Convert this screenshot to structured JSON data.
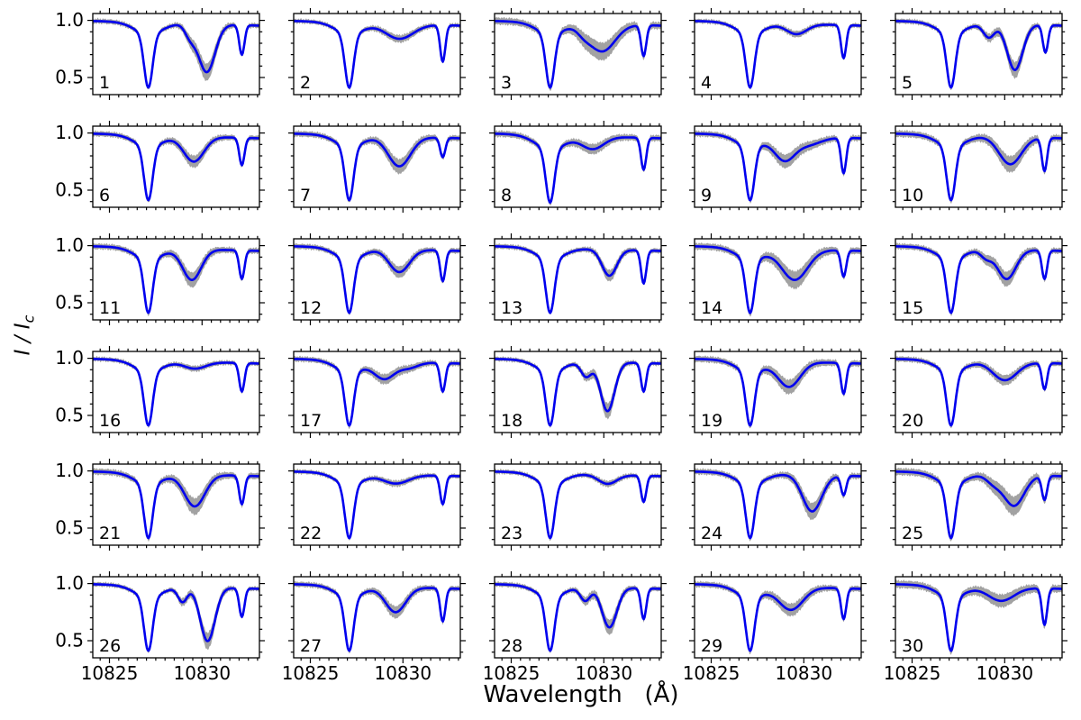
{
  "figure": {
    "background": "#ffffff",
    "text_color": "#000000"
  },
  "chart_data": {
    "type": "line",
    "title": "",
    "xlabel": "Wavelength   (Å)",
    "ylabel": "I / I_c",
    "ylabel_main": "I / I",
    "ylabel_sub": "c",
    "grid": "off",
    "legend": "none",
    "layout": {
      "rows": 6,
      "cols": 5,
      "panel_count": 30
    },
    "xlim": [
      10824.1,
      10833.1
    ],
    "ylim": [
      0.35,
      1.06
    ],
    "x_major_ticks": [
      10825,
      10830
    ],
    "x_tick_labels": [
      "10825",
      "10830"
    ],
    "x_minor_step": 0.5,
    "y_major_ticks": [
      1.0,
      0.5
    ],
    "y_tick_labels": [
      "1.0",
      "0.5"
    ],
    "y_minor_step": 0.1,
    "series": [
      {
        "name": "observed-spectrum-uncertainty-band",
        "color": "#a2a2a2"
      },
      {
        "name": "fitted-spectrum",
        "color": "#0000ee"
      }
    ],
    "continuum_default": [
      0.995,
      -0.0045
    ],
    "spectral_model_note": "lines = [center_angstrom, depth, sigma_angstrom] gaussian absorption components (Si I 10827 core+wing, He I 10830 blend, line at 10832)",
    "panels": [
      {
        "label": "1",
        "err": 1.0,
        "lines": [
          [
            10827.1,
            0.47,
            0.23
          ],
          [
            10827.1,
            0.1,
            0.75
          ],
          [
            10829.35,
            0.1,
            0.28
          ],
          [
            10830.25,
            0.42,
            0.45
          ],
          [
            10832.15,
            0.26,
            0.14
          ]
        ]
      },
      {
        "label": "2",
        "err": 0.9,
        "lines": [
          [
            10827.1,
            0.47,
            0.23
          ],
          [
            10827.1,
            0.1,
            0.75
          ],
          [
            10829.8,
            0.13,
            0.75
          ],
          [
            10832.15,
            0.32,
            0.14
          ]
        ]
      },
      {
        "label": "3",
        "err": 1.5,
        "lines": [
          [
            10827.1,
            0.47,
            0.23
          ],
          [
            10827.1,
            0.1,
            0.75
          ],
          [
            10828.9,
            0.05,
            0.35
          ],
          [
            10829.9,
            0.24,
            0.7
          ],
          [
            10832.15,
            0.27,
            0.14
          ]
        ]
      },
      {
        "label": "4",
        "err": 0.9,
        "lines": [
          [
            10827.1,
            0.47,
            0.23
          ],
          [
            10827.1,
            0.1,
            0.75
          ],
          [
            10829.6,
            0.09,
            0.55
          ],
          [
            10832.15,
            0.29,
            0.14
          ]
        ]
      },
      {
        "label": "5",
        "err": 1.0,
        "lines": [
          [
            10827.1,
            0.47,
            0.23
          ],
          [
            10827.1,
            0.1,
            0.75
          ],
          [
            10829.15,
            0.12,
            0.3
          ],
          [
            10830.55,
            0.4,
            0.42
          ],
          [
            10832.2,
            0.24,
            0.14
          ]
        ]
      },
      {
        "label": "6",
        "err": 1.1,
        "lines": [
          [
            10827.1,
            0.47,
            0.23
          ],
          [
            10827.1,
            0.1,
            0.75
          ],
          [
            10829.55,
            0.22,
            0.55
          ],
          [
            10832.15,
            0.24,
            0.14
          ]
        ]
      },
      {
        "label": "7",
        "err": 1.2,
        "lines": [
          [
            10827.1,
            0.47,
            0.23
          ],
          [
            10827.1,
            0.1,
            0.75
          ],
          [
            10829.8,
            0.26,
            0.6
          ],
          [
            10832.15,
            0.17,
            0.14
          ]
        ]
      },
      {
        "label": "8",
        "err": 1.3,
        "lines": [
          [
            10827.1,
            0.47,
            0.23
          ],
          [
            10827.1,
            0.12,
            0.8
          ],
          [
            10829.4,
            0.11,
            0.6
          ],
          [
            10832.15,
            0.28,
            0.14
          ]
        ]
      },
      {
        "label": "9",
        "err": 1.2,
        "lines": [
          [
            10827.1,
            0.47,
            0.23
          ],
          [
            10827.1,
            0.1,
            0.75
          ],
          [
            10828.95,
            0.2,
            0.55
          ],
          [
            10830.2,
            0.07,
            0.7
          ],
          [
            10832.15,
            0.31,
            0.14
          ]
        ]
      },
      {
        "label": "10",
        "err": 1.4,
        "lines": [
          [
            10827.1,
            0.47,
            0.23
          ],
          [
            10827.1,
            0.1,
            0.75
          ],
          [
            10830.3,
            0.24,
            0.6
          ],
          [
            10832.15,
            0.29,
            0.14
          ]
        ]
      },
      {
        "label": "11",
        "err": 1.2,
        "lines": [
          [
            10827.1,
            0.47,
            0.23
          ],
          [
            10827.1,
            0.1,
            0.75
          ],
          [
            10829.45,
            0.27,
            0.5
          ],
          [
            10832.15,
            0.25,
            0.14
          ]
        ]
      },
      {
        "label": "12",
        "err": 1.1,
        "lines": [
          [
            10827.1,
            0.47,
            0.23
          ],
          [
            10827.1,
            0.1,
            0.75
          ],
          [
            10829.8,
            0.2,
            0.55
          ],
          [
            10832.15,
            0.27,
            0.14
          ]
        ]
      },
      {
        "label": "13",
        "err": 1.0,
        "lines": [
          [
            10827.1,
            0.47,
            0.23
          ],
          [
            10827.1,
            0.1,
            0.75
          ],
          [
            10830.3,
            0.23,
            0.4
          ],
          [
            10832.15,
            0.29,
            0.14
          ]
        ]
      },
      {
        "label": "14",
        "err": 1.4,
        "lines": [
          [
            10827.1,
            0.47,
            0.23
          ],
          [
            10827.1,
            0.1,
            0.75
          ],
          [
            10829.5,
            0.27,
            0.7
          ],
          [
            10832.15,
            0.23,
            0.14
          ]
        ]
      },
      {
        "label": "15",
        "err": 1.2,
        "lines": [
          [
            10827.1,
            0.47,
            0.23
          ],
          [
            10827.1,
            0.1,
            0.75
          ],
          [
            10829.0,
            0.07,
            0.3
          ],
          [
            10830.1,
            0.26,
            0.5
          ],
          [
            10832.15,
            0.25,
            0.14
          ]
        ]
      },
      {
        "label": "16",
        "err": 0.9,
        "lines": [
          [
            10827.1,
            0.47,
            0.23
          ],
          [
            10827.1,
            0.1,
            0.75
          ],
          [
            10829.6,
            0.06,
            0.6
          ],
          [
            10832.15,
            0.25,
            0.14
          ]
        ]
      },
      {
        "label": "17",
        "err": 1.1,
        "lines": [
          [
            10827.1,
            0.47,
            0.23
          ],
          [
            10827.1,
            0.1,
            0.75
          ],
          [
            10829.0,
            0.15,
            0.55
          ],
          [
            10830.3,
            0.05,
            0.5
          ],
          [
            10832.15,
            0.25,
            0.14
          ]
        ]
      },
      {
        "label": "18",
        "err": 0.9,
        "lines": [
          [
            10827.1,
            0.47,
            0.23
          ],
          [
            10827.1,
            0.1,
            0.75
          ],
          [
            10829.05,
            0.13,
            0.28
          ],
          [
            10830.2,
            0.43,
            0.38
          ],
          [
            10832.15,
            0.25,
            0.14
          ]
        ]
      },
      {
        "label": "19",
        "err": 1.3,
        "lines": [
          [
            10827.1,
            0.47,
            0.23
          ],
          [
            10827.1,
            0.1,
            0.75
          ],
          [
            10829.2,
            0.22,
            0.6
          ],
          [
            10832.15,
            0.27,
            0.14
          ]
        ]
      },
      {
        "label": "20",
        "err": 1.1,
        "lines": [
          [
            10827.1,
            0.47,
            0.23
          ],
          [
            10827.1,
            0.1,
            0.75
          ],
          [
            10830.0,
            0.16,
            0.65
          ],
          [
            10832.15,
            0.23,
            0.14
          ]
        ]
      },
      {
        "label": "21",
        "err": 1.3,
        "lines": [
          [
            10827.1,
            0.47,
            0.23
          ],
          [
            10827.1,
            0.1,
            0.75
          ],
          [
            10829.6,
            0.28,
            0.55
          ],
          [
            10832.15,
            0.25,
            0.14
          ]
        ]
      },
      {
        "label": "22",
        "err": 0.9,
        "lines": [
          [
            10827.1,
            0.47,
            0.23
          ],
          [
            10827.1,
            0.1,
            0.75
          ],
          [
            10829.6,
            0.08,
            0.7
          ],
          [
            10832.15,
            0.25,
            0.14
          ]
        ]
      },
      {
        "label": "23",
        "err": 0.9,
        "lines": [
          [
            10827.1,
            0.47,
            0.23
          ],
          [
            10827.1,
            0.1,
            0.75
          ],
          [
            10830.2,
            0.08,
            0.5
          ],
          [
            10832.15,
            0.23,
            0.14
          ]
        ]
      },
      {
        "label": "24",
        "err": 1.2,
        "lines": [
          [
            10827.1,
            0.47,
            0.23
          ],
          [
            10827.1,
            0.1,
            0.75
          ],
          [
            10830.45,
            0.32,
            0.52
          ],
          [
            10832.15,
            0.17,
            0.14
          ]
        ]
      },
      {
        "label": "25",
        "err": 1.5,
        "lines": [
          [
            10827.1,
            0.47,
            0.23
          ],
          [
            10827.1,
            0.1,
            0.75
          ],
          [
            10829.4,
            0.07,
            0.4
          ],
          [
            10830.5,
            0.27,
            0.55
          ],
          [
            10832.15,
            0.21,
            0.14
          ]
        ]
      },
      {
        "label": "26",
        "err": 0.9,
        "lines": [
          [
            10827.1,
            0.47,
            0.23
          ],
          [
            10827.1,
            0.1,
            0.75
          ],
          [
            10828.95,
            0.13,
            0.25
          ],
          [
            10830.3,
            0.47,
            0.4
          ],
          [
            10832.15,
            0.25,
            0.14
          ]
        ]
      },
      {
        "label": "27",
        "err": 1.1,
        "lines": [
          [
            10827.1,
            0.47,
            0.23
          ],
          [
            10827.1,
            0.1,
            0.75
          ],
          [
            10829.6,
            0.22,
            0.55
          ],
          [
            10832.15,
            0.29,
            0.14
          ]
        ]
      },
      {
        "label": "28",
        "err": 1.0,
        "lines": [
          [
            10827.1,
            0.47,
            0.23
          ],
          [
            10827.1,
            0.1,
            0.75
          ],
          [
            10829.0,
            0.12,
            0.27
          ],
          [
            10830.3,
            0.35,
            0.4
          ],
          [
            10832.15,
            0.27,
            0.14
          ]
        ]
      },
      {
        "label": "29",
        "err": 1.2,
        "lines": [
          [
            10827.1,
            0.47,
            0.23
          ],
          [
            10827.1,
            0.1,
            0.75
          ],
          [
            10829.3,
            0.2,
            0.65
          ],
          [
            10832.15,
            0.27,
            0.14
          ]
        ]
      },
      {
        "label": "30",
        "err": 1.6,
        "lines": [
          [
            10827.1,
            0.47,
            0.23
          ],
          [
            10827.1,
            0.1,
            0.75
          ],
          [
            10829.8,
            0.12,
            0.7
          ],
          [
            10832.15,
            0.32,
            0.14
          ]
        ]
      }
    ]
  }
}
